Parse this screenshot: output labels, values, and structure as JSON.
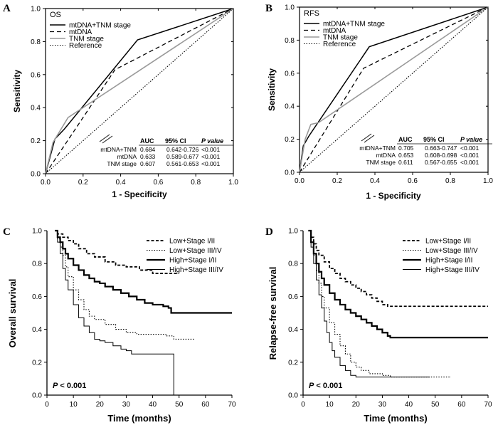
{
  "panels": [
    "A",
    "B",
    "C",
    "D"
  ],
  "chart_data": [
    {
      "id": "A",
      "type": "line",
      "title": "OS",
      "xlabel": "1 - Specificity",
      "ylabel": "Sensitivity",
      "xlim": [
        0,
        1
      ],
      "ylim": [
        0,
        1
      ],
      "xticks": [
        "0.0",
        "0.2",
        "0.4",
        "0.6",
        "0.8",
        "1.0"
      ],
      "yticks": [
        "0.0",
        "0.2",
        "0.4",
        "0.6",
        "0.8",
        "1.0"
      ],
      "series": [
        {
          "name": "mtDNA+TNM stage",
          "style": "solid-dark",
          "points": [
            [
              0,
              0
            ],
            [
              0.05,
              0.21
            ],
            [
              0.1,
              0.27
            ],
            [
              0.49,
              0.81
            ],
            [
              1,
              1
            ]
          ]
        },
        {
          "name": "mtDNA",
          "style": "dashed",
          "points": [
            [
              0,
              0
            ],
            [
              0.37,
              0.63
            ],
            [
              1,
              1
            ]
          ]
        },
        {
          "name": "TNM stage",
          "style": "solid-gray",
          "points": [
            [
              0,
              0
            ],
            [
              0.04,
              0.19
            ],
            [
              0.12,
              0.34
            ],
            [
              1,
              1
            ]
          ]
        },
        {
          "name": "Reference",
          "style": "dotted",
          "points": [
            [
              0,
              0
            ],
            [
              1,
              1
            ]
          ]
        }
      ],
      "table": {
        "headers": [
          "AUC",
          "95% CI",
          "P value"
        ],
        "rows": [
          {
            "label": "mtDNA+TNM",
            "auc": "0.684",
            "ci": "0.642-0.726",
            "p": "<0.001"
          },
          {
            "label": "mtDNA",
            "auc": "0.633",
            "ci": "0.589-0.677",
            "p": "<0.001"
          },
          {
            "label": "TNM stage",
            "auc": "0.607",
            "ci": "0.561-0.653",
            "p": "<0.001"
          }
        ]
      }
    },
    {
      "id": "B",
      "type": "line",
      "title": "RFS",
      "xlabel": "1 - Specificity",
      "ylabel": "Sensitivity",
      "xlim": [
        0,
        1
      ],
      "ylim": [
        0,
        1
      ],
      "xticks": [
        "0.0",
        "0.2",
        "0.4",
        "0.6",
        "0.8",
        "1.0"
      ],
      "yticks": [
        "0.0",
        "0.2",
        "0.4",
        "0.6",
        "0.8",
        "1.0"
      ],
      "series": [
        {
          "name": "mtDNA+TNM stage",
          "style": "solid-dark",
          "points": [
            [
              0,
              0
            ],
            [
              0.02,
              0.16
            ],
            [
              0.05,
              0.22
            ],
            [
              0.37,
              0.76
            ],
            [
              1,
              1
            ]
          ]
        },
        {
          "name": "mtDNA",
          "style": "dashed",
          "points": [
            [
              0,
              0
            ],
            [
              0.34,
              0.63
            ],
            [
              1,
              1
            ]
          ]
        },
        {
          "name": "TNM stage",
          "style": "solid-gray",
          "points": [
            [
              0,
              0
            ],
            [
              0.03,
              0.2
            ],
            [
              0.06,
              0.29
            ],
            [
              0.1,
              0.3
            ],
            [
              1,
              1
            ]
          ]
        },
        {
          "name": "Reference",
          "style": "dotted",
          "points": [
            [
              0,
              0
            ],
            [
              1,
              1
            ]
          ]
        }
      ],
      "table": {
        "headers": [
          "AUC",
          "95% CI",
          "P value"
        ],
        "rows": [
          {
            "label": "mtDNA+TNM",
            "auc": "0.705",
            "ci": "0.663-0.747",
            "p": "<0.001"
          },
          {
            "label": "mtDNA",
            "auc": "0.653",
            "ci": "0.608-0.698",
            "p": "<0.001"
          },
          {
            "label": "TNM stage",
            "auc": "0.611",
            "ci": "0.567-0.655",
            "p": "<0.001"
          }
        ]
      }
    },
    {
      "id": "C",
      "type": "line",
      "title": "",
      "xlabel": "Time (months)",
      "ylabel": "Overall survival",
      "xlim": [
        0,
        70
      ],
      "ylim": [
        0,
        1
      ],
      "xticks": [
        "0",
        "10",
        "20",
        "30",
        "40",
        "50",
        "60",
        "70"
      ],
      "yticks": [
        "0.0",
        "0.2",
        "0.4",
        "0.6",
        "0.8",
        "1.0"
      ],
      "pvalue_label": "P < 0.001",
      "series": [
        {
          "name": "Low+Stage I/II",
          "style": "dashed-thick",
          "points": [
            [
              3,
              1.0
            ],
            [
              4,
              0.98
            ],
            [
              6,
              0.96
            ],
            [
              8,
              0.94
            ],
            [
              10,
              0.92
            ],
            [
              12,
              0.89
            ],
            [
              15,
              0.86
            ],
            [
              18,
              0.84
            ],
            [
              22,
              0.81
            ],
            [
              26,
              0.79
            ],
            [
              30,
              0.78
            ],
            [
              35,
              0.76
            ],
            [
              40,
              0.74
            ],
            [
              50,
              0.74
            ]
          ]
        },
        {
          "name": "Low+Stage III/IV",
          "style": "dotted",
          "points": [
            [
              3,
              1.0
            ],
            [
              4,
              0.95
            ],
            [
              5,
              0.9
            ],
            [
              6,
              0.85
            ],
            [
              7,
              0.78
            ],
            [
              8,
              0.72
            ],
            [
              10,
              0.64
            ],
            [
              12,
              0.58
            ],
            [
              14,
              0.52
            ],
            [
              16,
              0.48
            ],
            [
              18,
              0.46
            ],
            [
              22,
              0.43
            ],
            [
              26,
              0.4
            ],
            [
              30,
              0.38
            ],
            [
              33,
              0.38
            ],
            [
              34,
              0.37
            ],
            [
              40,
              0.37
            ],
            [
              45,
              0.36
            ],
            [
              48,
              0.34
            ],
            [
              56,
              0.34
            ]
          ]
        },
        {
          "name": "High+Stage I/II",
          "style": "solid-thick",
          "points": [
            [
              3,
              1.0
            ],
            [
              4,
              0.96
            ],
            [
              5,
              0.93
            ],
            [
              6,
              0.89
            ],
            [
              7,
              0.86
            ],
            [
              8,
              0.83
            ],
            [
              10,
              0.79
            ],
            [
              12,
              0.76
            ],
            [
              14,
              0.73
            ],
            [
              16,
              0.71
            ],
            [
              18,
              0.69
            ],
            [
              20,
              0.68
            ],
            [
              22,
              0.66
            ],
            [
              25,
              0.64
            ],
            [
              28,
              0.62
            ],
            [
              31,
              0.6
            ],
            [
              34,
              0.58
            ],
            [
              37,
              0.56
            ],
            [
              40,
              0.55
            ],
            [
              42,
              0.55
            ],
            [
              44,
              0.54
            ],
            [
              46,
              0.53
            ],
            [
              47,
              0.5
            ],
            [
              70,
              0.5
            ]
          ]
        },
        {
          "name": "High+Stage III/IV",
          "style": "solid-thin",
          "points": [
            [
              3,
              1.0
            ],
            [
              4,
              0.93
            ],
            [
              5,
              0.86
            ],
            [
              6,
              0.77
            ],
            [
              7,
              0.7
            ],
            [
              8,
              0.64
            ],
            [
              10,
              0.55
            ],
            [
              12,
              0.47
            ],
            [
              14,
              0.42
            ],
            [
              16,
              0.38
            ],
            [
              18,
              0.34
            ],
            [
              20,
              0.33
            ],
            [
              22,
              0.32
            ],
            [
              25,
              0.3
            ],
            [
              28,
              0.28
            ],
            [
              30,
              0.27
            ],
            [
              32,
              0.25
            ],
            [
              38,
              0.25
            ],
            [
              48,
              0.25
            ],
            [
              48,
              0.0
            ]
          ]
        }
      ]
    },
    {
      "id": "D",
      "type": "line",
      "title": "",
      "xlabel": "Time (months)",
      "ylabel": "Relapse-free survival",
      "xlim": [
        0,
        70
      ],
      "ylim": [
        0,
        1
      ],
      "xticks": [
        "0",
        "10",
        "20",
        "30",
        "40",
        "50",
        "60",
        "70"
      ],
      "yticks": [
        "0.0",
        "0.2",
        "0.4",
        "0.6",
        "0.8",
        "1.0"
      ],
      "pvalue_label": "P < 0.001",
      "series": [
        {
          "name": "Low+Stage I/II",
          "style": "dashed-thick",
          "points": [
            [
              2,
              1.0
            ],
            [
              3,
              0.96
            ],
            [
              4,
              0.92
            ],
            [
              5,
              0.88
            ],
            [
              6,
              0.85
            ],
            [
              8,
              0.81
            ],
            [
              10,
              0.77
            ],
            [
              12,
              0.74
            ],
            [
              14,
              0.71
            ],
            [
              16,
              0.69
            ],
            [
              18,
              0.67
            ],
            [
              20,
              0.65
            ],
            [
              22,
              0.63
            ],
            [
              24,
              0.61
            ],
            [
              26,
              0.59
            ],
            [
              28,
              0.57
            ],
            [
              30,
              0.55
            ],
            [
              32,
              0.54
            ],
            [
              40,
              0.54
            ],
            [
              50,
              0.54
            ],
            [
              70,
              0.54
            ]
          ]
        },
        {
          "name": "Low+Stage III/IV",
          "style": "dotted",
          "points": [
            [
              2,
              1.0
            ],
            [
              3,
              0.93
            ],
            [
              4,
              0.85
            ],
            [
              5,
              0.76
            ],
            [
              6,
              0.68
            ],
            [
              7,
              0.6
            ],
            [
              8,
              0.53
            ],
            [
              10,
              0.44
            ],
            [
              12,
              0.37
            ],
            [
              14,
              0.3
            ],
            [
              16,
              0.25
            ],
            [
              18,
              0.2
            ],
            [
              20,
              0.17
            ],
            [
              22,
              0.15
            ],
            [
              25,
              0.13
            ],
            [
              28,
              0.13
            ],
            [
              30,
              0.12
            ],
            [
              33,
              0.11
            ],
            [
              40,
              0.11
            ],
            [
              48,
              0.11
            ],
            [
              56,
              0.11
            ]
          ]
        },
        {
          "name": "High+Stage I/II",
          "style": "solid-thick",
          "points": [
            [
              2,
              1.0
            ],
            [
              3,
              0.93
            ],
            [
              4,
              0.86
            ],
            [
              5,
              0.8
            ],
            [
              6,
              0.75
            ],
            [
              7,
              0.71
            ],
            [
              8,
              0.67
            ],
            [
              10,
              0.62
            ],
            [
              12,
              0.58
            ],
            [
              14,
              0.55
            ],
            [
              16,
              0.52
            ],
            [
              18,
              0.5
            ],
            [
              20,
              0.48
            ],
            [
              22,
              0.46
            ],
            [
              24,
              0.44
            ],
            [
              26,
              0.42
            ],
            [
              28,
              0.4
            ],
            [
              30,
              0.38
            ],
            [
              32,
              0.36
            ],
            [
              33,
              0.35
            ],
            [
              40,
              0.35
            ],
            [
              70,
              0.35
            ]
          ]
        },
        {
          "name": "High+Stage III/IV",
          "style": "solid-thin",
          "points": [
            [
              2,
              1.0
            ],
            [
              3,
              0.9
            ],
            [
              4,
              0.8
            ],
            [
              5,
              0.7
            ],
            [
              6,
              0.61
            ],
            [
              7,
              0.53
            ],
            [
              8,
              0.45
            ],
            [
              9,
              0.38
            ],
            [
              10,
              0.32
            ],
            [
              11,
              0.27
            ],
            [
              12,
              0.23
            ],
            [
              14,
              0.18
            ],
            [
              16,
              0.15
            ],
            [
              18,
              0.12
            ],
            [
              20,
              0.11
            ],
            [
              25,
              0.11
            ],
            [
              30,
              0.11
            ],
            [
              35,
              0.11
            ],
            [
              45,
              0.11
            ],
            [
              48,
              0.11
            ]
          ]
        }
      ]
    }
  ]
}
